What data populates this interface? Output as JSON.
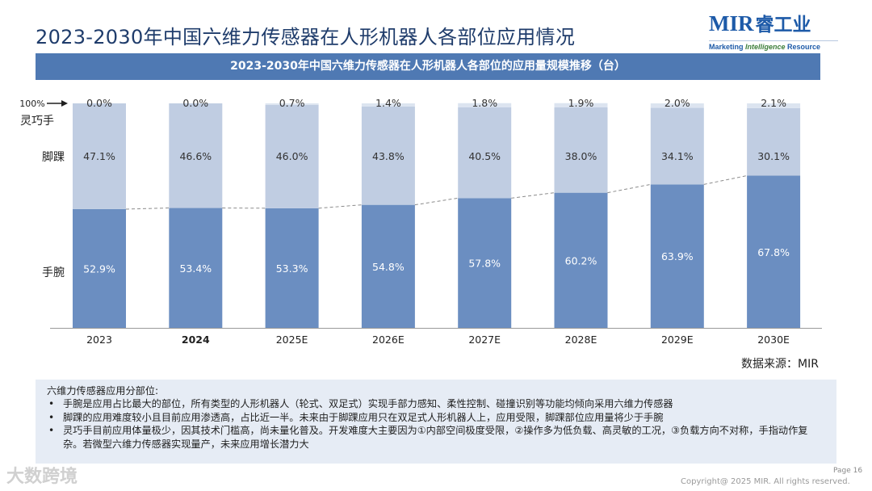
{
  "page_title": "2023-2030年中国六维力传感器在人形机器人各部位应用情况",
  "logo": {
    "brand": "MIR",
    "brand_cn": "睿工业",
    "tagline_a": "Marketing ",
    "tagline_b": "Intelligence",
    "tagline_c": " Resource"
  },
  "chart_data": {
    "type": "bar",
    "stacked": true,
    "title": "2023-2030年中国六维力传感器在人形机器人各部位的应用量规模推移（台）",
    "categories": [
      "2023",
      "2024",
      "2025E",
      "2026E",
      "2027E",
      "2028E",
      "2029E",
      "2030E"
    ],
    "highlight_category": "2024",
    "series": [
      {
        "name": "手腕",
        "values": [
          52.9,
          53.4,
          53.3,
          54.8,
          57.8,
          60.2,
          63.9,
          67.8
        ],
        "labels": [
          "52.9%",
          "53.4%",
          "53.3%",
          "54.8%",
          "57.8%",
          "60.2%",
          "63.9%",
          "67.8%"
        ],
        "color": "#6b8ec1",
        "label_color": "#ffffff"
      },
      {
        "name": "脚踝",
        "values": [
          47.1,
          46.6,
          46.0,
          43.8,
          40.5,
          38.0,
          34.1,
          30.1
        ],
        "labels": [
          "47.1%",
          "46.6%",
          "46.0%",
          "43.8%",
          "40.5%",
          "38.0%",
          "34.1%",
          "30.1%"
        ],
        "color": "#c0cde2",
        "label_color": "#333333"
      },
      {
        "name": "灵巧手",
        "values": [
          0.0,
          0.0,
          0.7,
          1.4,
          1.8,
          1.9,
          2.0,
          2.1
        ],
        "labels": [
          "0.0%",
          "0.0%",
          "0.7%",
          "1.4%",
          "1.8%",
          "1.9%",
          "2.0%",
          "2.1%"
        ],
        "color": "#dce4f0",
        "label_color": "#333333"
      }
    ],
    "ylim": [
      0,
      100
    ],
    "top_marker": "100%",
    "trend_line": "dashed",
    "xlabel": "",
    "ylabel": ""
  },
  "source": "数据来源：MIR",
  "notes": {
    "heading": "六维力传感器应用分部位:",
    "items": [
      "手腕是应用占比最大的部位，所有类型的人形机器人（轮式、双足式）实现手部力感知、柔性控制、碰撞识别等功能均倾向采用六维力传感器",
      "脚踝的应用难度较小且目前应用渗透高，占比近一半。未来由于脚踝应用只在双足式人形机器人上，应用受限，脚踝部位应用量将少于手腕",
      "灵巧手目前应用体量极少，因其技术门槛高，尚未量化普及。开发难度大主要因为①内部空间极度受限，②操作多为低负载、高灵敏的工况，③负载方向不对称，手指动作复杂。若微型六维力传感器实现量产，未来应用增长潜力大"
    ]
  },
  "footer": {
    "page": "Page 16",
    "copyright": "Copyright@ 2025 MIR. All rights reserved.",
    "watermark": "大数跨境"
  }
}
